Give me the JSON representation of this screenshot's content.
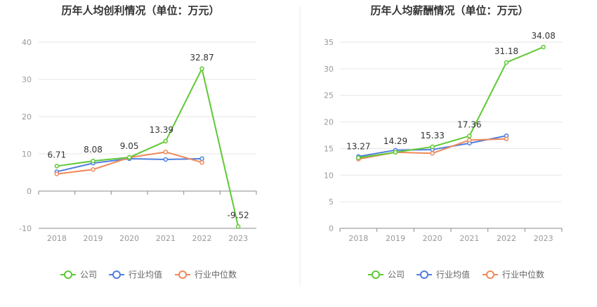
{
  "chart_data": [
    {
      "type": "line",
      "title": "历年人均创利情况（单位：万元）",
      "categories": [
        "2018",
        "2019",
        "2020",
        "2021",
        "2022",
        "2023"
      ],
      "ylim": [
        -10,
        40
      ],
      "yticks": [
        -10,
        0,
        10,
        20,
        30,
        40
      ],
      "grid": true,
      "legend_position": "bottom",
      "series": [
        {
          "name": "公司",
          "color": "#5ec935",
          "values": [
            6.71,
            8.08,
            9.05,
            13.39,
            32.87,
            -9.52
          ],
          "labels": [
            "6.71",
            "8.08",
            "9.05",
            "13.39",
            "32.87",
            "-9.52"
          ]
        },
        {
          "name": "行业均值",
          "color": "#4f7fdd",
          "values": [
            5.2,
            7.5,
            8.7,
            8.5,
            8.7,
            null
          ]
        },
        {
          "name": "行业中位数",
          "color": "#f0895a",
          "values": [
            4.6,
            5.8,
            9.0,
            10.5,
            7.7,
            null
          ]
        }
      ]
    },
    {
      "type": "line",
      "title": "历年人均薪酬情况（单位：万元）",
      "categories": [
        "2018",
        "2019",
        "2020",
        "2021",
        "2022",
        "2023"
      ],
      "ylim": [
        0,
        35
      ],
      "yticks": [
        0,
        5,
        10,
        15,
        20,
        25,
        30,
        35
      ],
      "grid": true,
      "legend_position": "bottom",
      "series": [
        {
          "name": "公司",
          "color": "#5ec935",
          "values": [
            13.27,
            14.29,
            15.33,
            17.36,
            31.18,
            34.08
          ],
          "labels": [
            "13.27",
            "14.29",
            "15.33",
            "17.36",
            "31.18",
            "34.08"
          ]
        },
        {
          "name": "行业均值",
          "color": "#4f7fdd",
          "values": [
            13.5,
            14.7,
            14.8,
            16.0,
            17.4,
            null
          ]
        },
        {
          "name": "行业中位数",
          "color": "#f0895a",
          "values": [
            13.0,
            14.3,
            14.1,
            16.6,
            16.8,
            null
          ]
        }
      ]
    }
  ]
}
